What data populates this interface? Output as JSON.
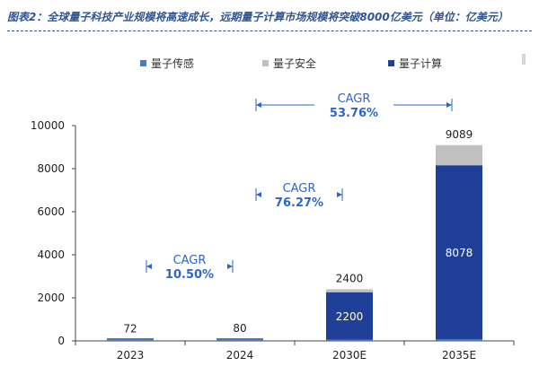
{
  "header": {
    "title": "图表2：全球量子科技产业规模将高速成长，远期量子计算市场规模将突破8000亿美元（单位：亿美元）"
  },
  "colors": {
    "sensing": "#4a7ebb",
    "security": "#c0c0c0",
    "computing": "#1f3f98",
    "accent": "#2e66c7",
    "title": "#2f5597"
  },
  "chart_data": {
    "type": "bar",
    "stacked": true,
    "categories": [
      "2023",
      "2024",
      "2030E",
      "2035E"
    ],
    "series": [
      {
        "name": "量子传感",
        "values": [
          72,
          80,
          60,
          80
        ]
      },
      {
        "name": "量子安全",
        "values": [
          0,
          0,
          140,
          931
        ]
      },
      {
        "name": "量子计算",
        "values": [
          0,
          0,
          2200,
          8078
        ]
      }
    ],
    "totals": [
      "72",
      "80",
      "2400",
      "9089"
    ],
    "segment_labels": [
      {
        "category": "2030E",
        "series": "量子计算",
        "text": "2200"
      },
      {
        "category": "2035E",
        "series": "量子计算",
        "text": "8078"
      }
    ],
    "y_ticks": [
      "0",
      "2000",
      "4000",
      "6000",
      "8000",
      "10000"
    ],
    "ylim": [
      0,
      10000
    ],
    "legend_position": "top",
    "grid": false,
    "annotations": [
      {
        "label": "CAGR",
        "value": "10.50%",
        "from": "2023",
        "to": "2024"
      },
      {
        "label": "CAGR",
        "value": "76.27%",
        "from": "2024",
        "to": "2030E"
      },
      {
        "label": "CAGR",
        "value": "53.76%",
        "from": "2024",
        "to": "2035E"
      }
    ]
  }
}
